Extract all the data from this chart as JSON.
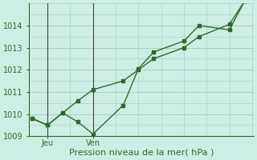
{
  "line1_x": [
    0,
    0.5,
    1,
    1.5,
    2,
    3,
    3.5,
    4,
    5,
    5.5,
    6.5,
    7
  ],
  "line1_y": [
    1009.8,
    1009.5,
    1010.05,
    1009.65,
    1009.1,
    1010.4,
    1012.05,
    1012.8,
    1013.3,
    1014.0,
    1013.8,
    1015.1
  ],
  "line2_x": [
    0,
    0.5,
    1,
    1.5,
    2,
    3,
    3.5,
    4,
    5,
    5.5,
    6.5,
    7
  ],
  "line2_y": [
    1009.8,
    1009.5,
    1010.05,
    1010.6,
    1011.1,
    1011.5,
    1012.0,
    1012.5,
    1013.0,
    1013.5,
    1014.05,
    1015.1
  ],
  "line_color": "#2d6a2d",
  "bg_color": "#cdeee4",
  "grid_color": "#a0ccbb",
  "xlabel": "Pression niveau de la mer( hPa )",
  "ylim": [
    1009.0,
    1015.0
  ],
  "yticks": [
    1009,
    1010,
    1011,
    1012,
    1013,
    1014
  ],
  "xlim": [
    -0.1,
    7.3
  ],
  "xtick_positions": [
    0.5,
    2.0
  ],
  "xtick_labels": [
    "Jeu",
    "Ven"
  ],
  "vline_positions": [
    0.5,
    2.0
  ],
  "markersize": 3.0,
  "linewidth": 1.0,
  "fontsize_label": 8,
  "fontsize_ticks": 7,
  "vline_color": "#444444"
}
